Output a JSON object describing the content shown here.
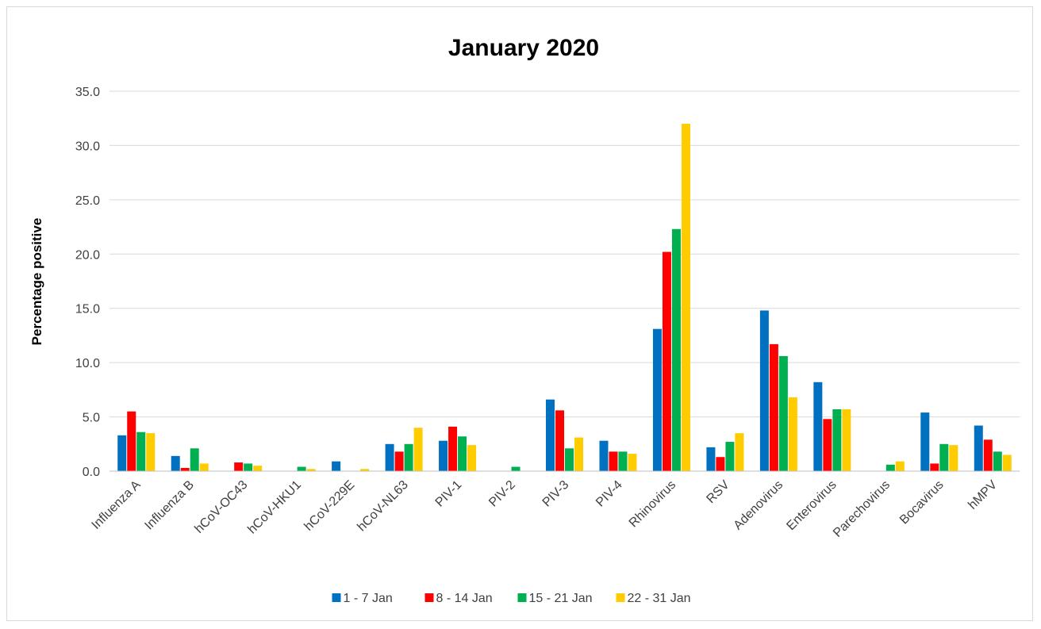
{
  "chart_data": {
    "type": "bar",
    "title": "January 2020",
    "xlabel": "",
    "ylabel": "Percentage positive",
    "ylim": [
      0,
      35
    ],
    "yticks": [
      "0.0",
      "5.0",
      "10.0",
      "15.0",
      "20.0",
      "25.0",
      "30.0",
      "35.0"
    ],
    "grid": true,
    "legend_position": "bottom",
    "categories": [
      "Influenza A",
      "Influenza B",
      "hCoV-OC43",
      "hCoV-HKU1",
      "hCoV-229E",
      "hCoV-NL63",
      "PIV-1",
      "PIV-2",
      "PIV-3",
      "PIV-4",
      "Rhinovirus",
      "RSV",
      "Adenovirus",
      "Enterovirus",
      "Parechovirus",
      "Bocavirus",
      "hMPV"
    ],
    "series": [
      {
        "name": "1 - 7 Jan",
        "color": "#0070c0",
        "values": [
          3.3,
          1.4,
          0,
          0,
          0.9,
          2.5,
          2.8,
          0,
          6.6,
          2.8,
          13.1,
          2.2,
          14.8,
          8.2,
          0,
          5.4,
          4.2
        ]
      },
      {
        "name": "8 - 14 Jan",
        "color": "#ff0000",
        "values": [
          5.5,
          0.3,
          0.8,
          0,
          0,
          1.8,
          4.1,
          0,
          5.6,
          1.8,
          20.2,
          1.3,
          11.7,
          4.8,
          0,
          0.7,
          2.9
        ]
      },
      {
        "name": "15 - 21 Jan",
        "color": "#00b050",
        "values": [
          3.6,
          2.1,
          0.7,
          0.4,
          0,
          2.5,
          3.2,
          0.4,
          2.1,
          1.8,
          22.3,
          2.7,
          10.6,
          5.7,
          0.6,
          2.5,
          1.8
        ]
      },
      {
        "name": "22 - 31 Jan",
        "color": "#ffcc00",
        "values": [
          3.5,
          0.7,
          0.5,
          0.2,
          0.2,
          4.0,
          2.4,
          0,
          3.1,
          1.6,
          32.0,
          3.5,
          6.8,
          5.7,
          0.9,
          2.4,
          1.5
        ]
      }
    ]
  }
}
